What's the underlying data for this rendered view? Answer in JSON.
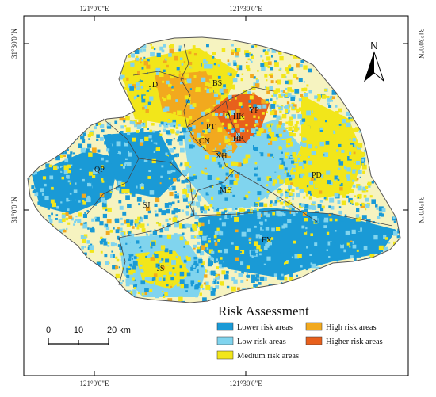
{
  "axis_labels": {
    "top": [
      "121°0'0\"E",
      "121°30'0\"E"
    ],
    "bottom": [
      "121°0'0\"E",
      "121°30'0\"E"
    ],
    "left": [
      "31°30'0\"N",
      "31°0'0\"N"
    ],
    "right": [
      "31°30'0\"N",
      "31°0'0\"N"
    ]
  },
  "north_arrow": {
    "label": "N"
  },
  "scale_bar": {
    "ticks": [
      "0",
      "10",
      "20 km"
    ]
  },
  "legend": {
    "title": "Risk Assessment",
    "items": [
      {
        "label": "Lower risk areas",
        "color": "#1a9ad6"
      },
      {
        "label": "Low risk areas",
        "color": "#80d4ee"
      },
      {
        "label": "Medium risk areas",
        "color": "#f2e61a"
      },
      {
        "label": "High risk areas",
        "color": "#f2a91e"
      },
      {
        "label": "Higher risk areas",
        "color": "#e8601c"
      }
    ]
  },
  "districts": [
    "JD",
    "BS",
    "JA",
    "HK",
    "YP",
    "PT",
    "CN",
    "HP",
    "XH",
    "MH",
    "PD",
    "QP",
    "SJ",
    "FX",
    "JS"
  ]
}
